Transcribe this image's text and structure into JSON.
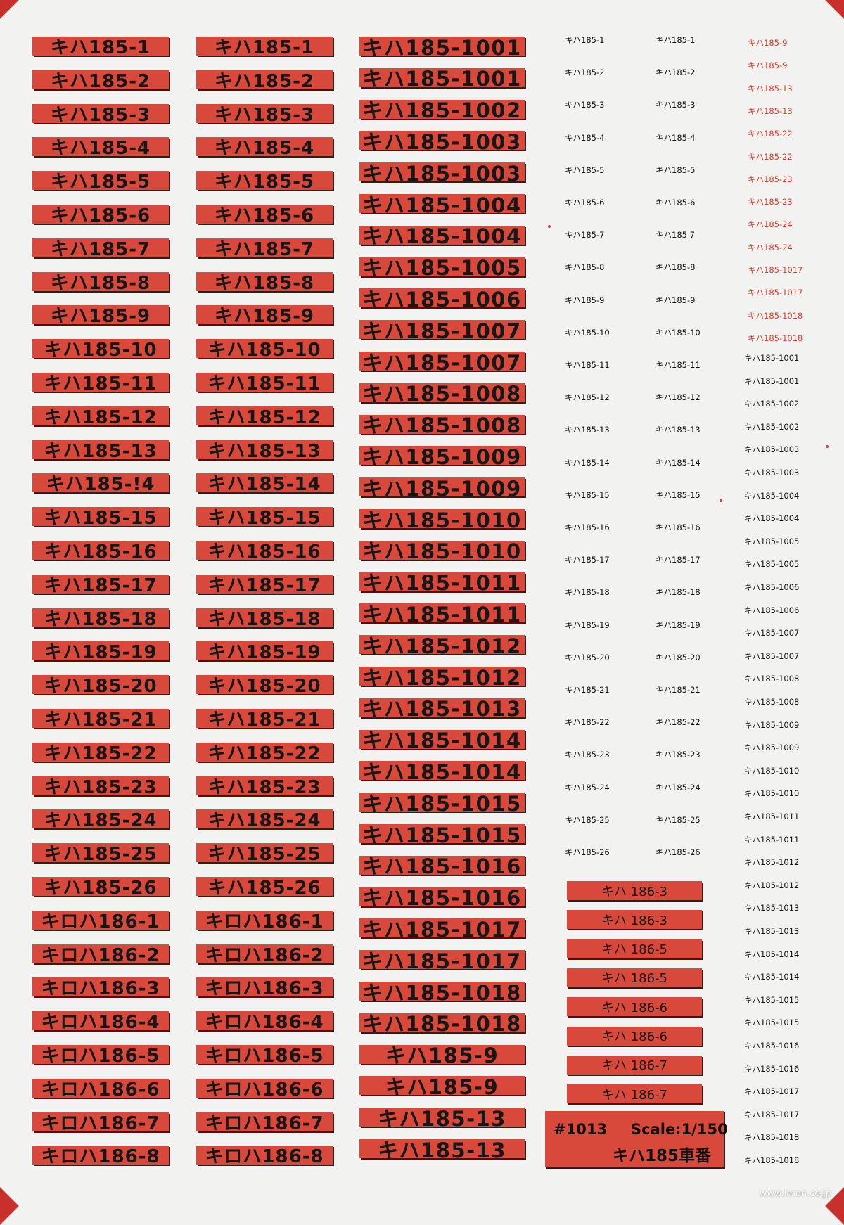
{
  "sheet": {
    "code": "#1013",
    "scale": "Scale:1/150",
    "title": "キハ185車番",
    "credit": "www.imon.co.jp"
  },
  "col1": [
    "キハ185-1",
    "キハ185-2",
    "キハ185-3",
    "キハ185-4",
    "キハ185-5",
    "キハ185-6",
    "キハ185-7",
    "キハ185-8",
    "キハ185-9",
    "キハ185-10",
    "キハ185-11",
    "キハ185-12",
    "キハ185-13",
    "キハ185-!4",
    "キハ185-15",
    "キハ185-16",
    "キハ185-17",
    "キハ185-18",
    "キハ185-19",
    "キハ185-20",
    "キハ185-21",
    "キハ185-22",
    "キハ185-23",
    "キハ185-24",
    "キハ185-25",
    "キハ185-26",
    "キロハ186-1",
    "キロハ186-2",
    "キロハ186-3",
    "キロハ186-4",
    "キロハ186-5",
    "キロハ186-6",
    "キロハ186-7",
    "キロハ186-8"
  ],
  "col2": [
    "キハ185-1",
    "キハ185-2",
    "キハ185-3",
    "キハ185-4",
    "キハ185-5",
    "キハ185-6",
    "キハ185-7",
    "キハ185-8",
    "キハ185-9",
    "キハ185-10",
    "キハ185-11",
    "キハ185-12",
    "キハ185-13",
    "キハ185-14",
    "キハ185-15",
    "キハ185-16",
    "キハ185-17",
    "キハ185-18",
    "キハ185-19",
    "キハ185-20",
    "キハ185-21",
    "キハ185-22",
    "キハ185-23",
    "キハ185-24",
    "キハ185-25",
    "キハ185-26",
    "キロハ186-1",
    "キロハ186-2",
    "キロハ186-3",
    "キロハ186-4",
    "キロハ186-5",
    "キロハ186-6",
    "キロハ186-7",
    "キロハ186-8"
  ],
  "col3": [
    "キハ185-1001",
    "キハ185-1001",
    "キハ185-1002",
    "キハ185-1003",
    "キハ185-1003",
    "キハ185-1004",
    "キハ185-1004",
    "キハ185-1005",
    "キハ185-1006",
    "キハ185-1007",
    "キハ185-1007",
    "キハ185-1008",
    "キハ185-1008",
    "キハ185-1009",
    "キハ185-1009",
    "キハ185-1010",
    "キハ185-1010",
    "キハ185-1011",
    "キハ185-1011",
    "キハ185-1012",
    "キハ185-1012",
    "キハ185-1013",
    "キハ185-1014",
    "キハ185-1014",
    "キハ185-1015",
    "キハ185-1015",
    "キハ185-1016",
    "キハ185-1016",
    "キハ185-1017",
    "キハ185-1017",
    "キハ185-1018",
    "キハ185-1018",
    "キハ185-9",
    "キハ185-9",
    "キハ185-13",
    "キハ185-13"
  ],
  "col4": [
    "キハ185-1",
    "キハ185-2",
    "キハ185-3",
    "キハ185-4",
    "キハ185-5",
    "キハ185-6",
    "キハ185-7",
    "キハ185-8",
    "キハ185-9",
    "キハ185-10",
    "キハ185-11",
    "キハ185-12",
    "キハ185-13",
    "キハ185-14",
    "キハ185-15",
    "キハ185-16",
    "キハ185-17",
    "キハ185-18",
    "キハ185-19",
    "キハ185-20",
    "キハ185-21",
    "キハ185-22",
    "キハ185-23",
    "キハ185-24",
    "キハ185-25",
    "キハ185-26"
  ],
  "col5": [
    "キハ185-1",
    "キハ185-2",
    "キハ185-3",
    "キハ185-4",
    "キハ185-5",
    "キハ185-6",
    "キハ185 7",
    "キハ185-8",
    "キハ185-9",
    "キハ185-10",
    "キハ185-11",
    "キハ185-12",
    "キハ185-13",
    "キハ185-14",
    "キハ185-15",
    "キハ185-16",
    "キハ185-17",
    "キハ185-18",
    "キハ185-19",
    "キハ185-20",
    "キハ185-21",
    "キハ185-22",
    "キハ185-23",
    "キハ185-24",
    "キハ185-25",
    "キハ185-26"
  ],
  "col_mid": [
    "キハ 186-3",
    "キハ 186-3",
    "キハ 186-5",
    "キハ 186-5",
    "キハ 186-6",
    "キハ 186-6",
    "キハ 186-7",
    "キハ 186-7"
  ],
  "col6_red": [
    "キハ185-9",
    "キハ185-9",
    "キハ185-13",
    "キハ185-13",
    "キハ185-22",
    "キハ185-22",
    "キハ185-23",
    "キハ185-23",
    "キハ185-24",
    "キハ185-24",
    "キハ185-1017",
    "キハ185-1017",
    "キハ185-1018",
    "キハ185-1018"
  ],
  "col6_black": [
    "キハ185-1001",
    "キハ185-1001",
    "キハ185-1002",
    "キハ185-1002",
    "キハ185-1003",
    "キハ185-1003",
    "キハ185-1004",
    "キハ185-1004",
    "キハ185-1005",
    "キハ185-1005",
    "キハ185-1006",
    "キハ185-1006",
    "キハ185-1007",
    "キハ185-1007",
    "キハ185-1008",
    "キハ185-1008",
    "キハ185-1009",
    "キハ185-1009",
    "キハ185-1010",
    "キハ185-1010",
    "キハ185-1011",
    "キハ185-1011",
    "キハ185-1012",
    "キハ185-1012",
    "キハ185-1013",
    "キハ185-1013",
    "キハ185-1014",
    "キハ185-1014",
    "キハ185-1015",
    "キハ185-1015",
    "キハ185-1016",
    "キハ185-1016",
    "キハ185-1017",
    "キハ185-1017",
    "キハ185-1018",
    "キハ185-1018"
  ],
  "colors": {
    "plate": "#d9493b",
    "ink": "#171717",
    "red_ink": "#e1382c",
    "sheet": "#f2f2f0"
  }
}
